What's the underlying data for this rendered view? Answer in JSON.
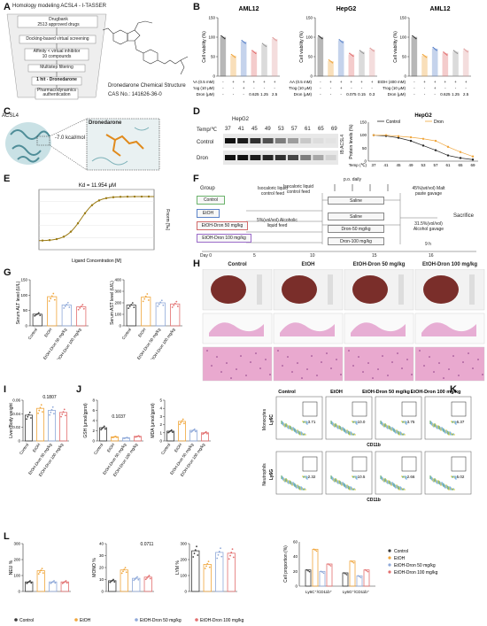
{
  "panels": {
    "A": "A",
    "B": "B",
    "C": "C",
    "D": "D",
    "E": "E",
    "F": "F",
    "G": "G",
    "H": "H",
    "I": "I",
    "J": "J",
    "K": "K",
    "L": "L"
  },
  "panel_a": {
    "title": "Homology modeling ACSL4 - I-TASSER",
    "steps": [
      "Drugbank\n2513 approved drugs",
      "Docking-based virtual screening",
      "Affinity < virtual inhibitor\n10 compounds",
      "Multistep filtering",
      "1 hit - Dronedarone",
      "Pharmacodynamics\nauthentication"
    ],
    "structure_title": "Dronedarone Chemical Structure",
    "cas": "CAS No.: 141626-36-0"
  },
  "panel_b": {
    "titles": [
      "AML12",
      "HepG2",
      "AML12"
    ],
    "ylabel": "Cell viability (%)",
    "rows1": [
      "AA (0.5 mM)",
      "Trog (10 μM)",
      "Dron (μM)"
    ],
    "rows3": [
      "EtOH (400 mM)",
      "Trog (10 μM)",
      "Dron (μM)"
    ],
    "vals1": [
      "-",
      "+",
      "+",
      "+",
      "+",
      "+"
    ],
    "vals2": [
      "-",
      "-",
      "+",
      "-",
      "-",
      "-"
    ],
    "vals3": [
      "-",
      "-",
      "-",
      "0.625",
      "1.25",
      "2.5"
    ],
    "vals3b": [
      "-",
      "-",
      "-",
      "0.075",
      "0.15",
      "0.3"
    ],
    "ticks": [
      "0",
      "50",
      "100",
      "150"
    ]
  },
  "panel_c": {
    "protein": "ACSL4",
    "drug": "Dronedarone",
    "energy": "-7.0 kcal/mol"
  },
  "panel_d": {
    "gel_title": "HepG2",
    "temp_label": "Temp/℃",
    "temps": [
      "37",
      "41",
      "45",
      "49",
      "53",
      "57",
      "61",
      "65",
      "69"
    ],
    "rows": [
      "Control",
      "Dron"
    ],
    "ib": "IB:ACSL4",
    "chart_title": "HepG2",
    "legend": [
      "Control",
      "Dron"
    ],
    "ylabel": "Protein levels (%)",
    "xlabel": "Temp (℃)"
  },
  "panel_e": {
    "kd": "Kd = 11.954 μM",
    "xlabel": "Ligand Concentration [M]",
    "ylabel": "Fnorm [‰]"
  },
  "panel_f": {
    "group_label": "Group",
    "groups": [
      "Control",
      "EtOH",
      "EtOH-Dron 50 mg/kg",
      "EtOH-Dron 100 mg/kg"
    ],
    "feed1": "Isocaloric liquid\ncontrol feed",
    "feed2": "Isocaloric liquid\ncontrol feed",
    "feed3": "5%(vol/vol) Alcoholic\nliquid feed",
    "po": "p.o. daily",
    "saline1": "Saline",
    "saline2": "Saline",
    "dron50": "Dron-50 mg/kg",
    "dron100": "Dron-100 mg/kg",
    "malt": "45%(wt/vol) Malt\npaste gavage",
    "alcohol": "31.5%(vol/vol)\nAlcohol gavage",
    "sacrifice": "Sacrifice",
    "hours": "9 h",
    "days": [
      "Day 0",
      "5",
      "10",
      "15",
      "16"
    ]
  },
  "panel_h": {
    "cols": [
      "Control",
      "EtOH",
      "EtOH-Dron 50 mg/kg",
      "EtOH-Dron 100 mg/kg"
    ]
  },
  "groups_x": [
    "Control",
    "EtOH",
    "EtOH-Dron 50 mg/kg",
    "EtOH-Dron 100 mg/kg"
  ],
  "panel_g": {
    "ylabel1": "Serum ALT level (U/L)",
    "ylabel2": "Serum AST level (U/L)"
  },
  "panel_i": {
    "ylabel": "Liver/Body weight",
    "pval": "0.1807"
  },
  "panel_j": {
    "ylabel1": "GSH (μmol/gprot)",
    "ylabel2": "MDA (μmol/gprot)",
    "pval": "0.1037"
  },
  "panel_k": {
    "cols": [
      "Control",
      "EtOH",
      "EtOH-Dron 50 mg/kg",
      "EtOH-Dron 100 mg/kg"
    ],
    "row1": "Monocytes",
    "row2": "Neutrophils",
    "y1": "Ly6C",
    "y2": "Ly6G",
    "x": "CD11b",
    "mono": [
      "3.71",
      "10.0",
      "3.75",
      "6.37"
    ],
    "neu": [
      "2.32",
      "10.5",
      "2.66",
      "5.02"
    ],
    "bar_ylabel": "Cell proportion (%)",
    "bar_x": [
      "Ly6C⁺/CD11b⁺",
      "Ly6G⁺/CD11b⁺"
    ],
    "legend": [
      "Control",
      "EtOH",
      "EtOH-Dron 50 mg/kg",
      "EtOH-Dron 100 mg/kg"
    ]
  },
  "panel_l": {
    "ylabels": [
      "NEU %",
      "MONO %",
      "LYM %"
    ],
    "pval": "0.0711",
    "legend": [
      "Control",
      "EtOH",
      "EtOH-Dron 50 mg/kg",
      "EtOH-Dron 100 mg/kg"
    ]
  },
  "colors": {
    "control": "#3a3a3a",
    "etoh": "#f0a63c",
    "dron50": "#8fa9d9",
    "dron100": "#e26f6f",
    "curve": "#9a7a12"
  }
}
